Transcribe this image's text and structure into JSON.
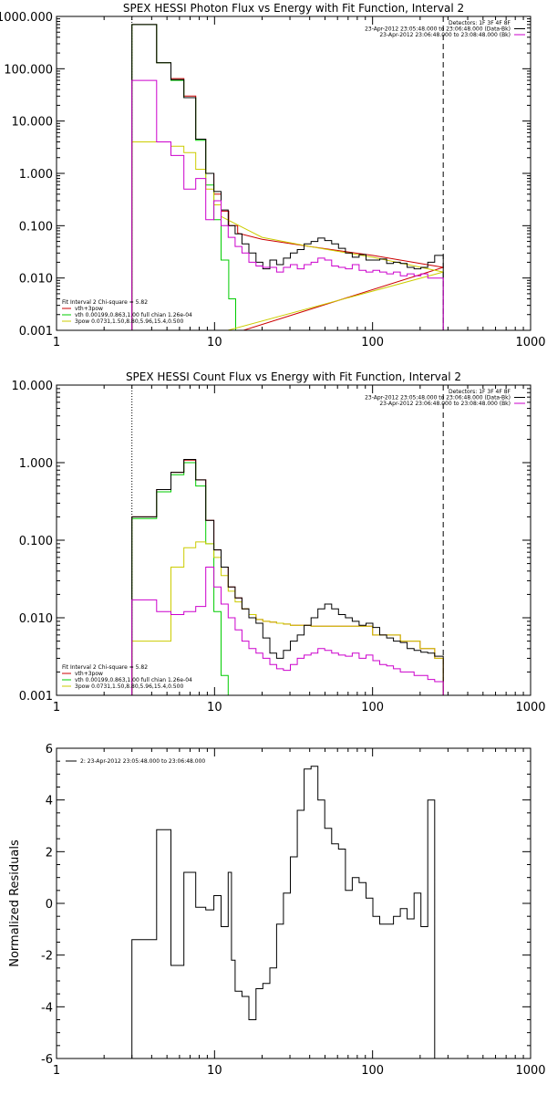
{
  "chart_data": [
    {
      "type": "line",
      "title": "SPEX HESSI Photon Flux vs Energy with Fit Function, Interval 2",
      "xscale": "log",
      "yscale": "log",
      "xlim": [
        1,
        1000
      ],
      "ylim": [
        0.001,
        1000
      ],
      "xticks": [
        {
          "value": 1,
          "label": "1"
        },
        {
          "value": 10,
          "label": "10"
        },
        {
          "value": 100,
          "label": "100"
        },
        {
          "value": 1000,
          "label": "1000"
        }
      ],
      "yticks": [
        {
          "value": 0.001,
          "label": "0.001"
        },
        {
          "value": 0.01,
          "label": "0.010"
        },
        {
          "value": 0.1,
          "label": "0.100"
        },
        {
          "value": 1,
          "label": "1.000"
        },
        {
          "value": 10,
          "label": "10.000"
        },
        {
          "value": 100,
          "label": "100.000"
        },
        {
          "value": 1000,
          "label": "1000.000"
        }
      ],
      "vlines": [
        {
          "x": 3,
          "style": "dotted",
          "color": "#000000"
        },
        {
          "x": 280,
          "style": "dashed",
          "color": "#000000"
        }
      ],
      "legend_top_right": [
        {
          "text": "Detectors: 1F 3F 4F 8F",
          "color": "#000000"
        },
        {
          "text": "23-Apr-2012 23:05:48.000 to 23:06:48.000 (Data-Bk)",
          "color": "#000000"
        },
        {
          "text": "23-Apr-2012 23:06:48.000 to 23:08:48.000 (Bk)",
          "color": "#cc00cc"
        }
      ],
      "legend_bottom_left": [
        {
          "text": "Fit Interval 2   Chi-square = 5.82",
          "color": "#000000"
        },
        {
          "text": "vth+3pow",
          "color": "#cc0000"
        },
        {
          "text": "vth 0.00199,0.863,1.00  full chian 1.26e-04",
          "color": "#00cc00"
        },
        {
          "text": "3pow 0.0731,1.50,8.80,5.96,15.4,0.500",
          "color": "#cccc00"
        }
      ],
      "series": [
        {
          "name": "vth+3pow",
          "color": "#cc0000",
          "step": true,
          "edges": [
            3,
            4.3,
            5.3,
            6.4,
            7.6,
            8.8,
            9.9,
            11,
            12.3,
            14
          ],
          "values": [
            700,
            130,
            65,
            30,
            4.5,
            1.0,
            0.4,
            0.19,
            0.1
          ],
          "line": {
            "x": [
              14,
              20,
              40,
              100,
              280
            ],
            "y": [
              0.072,
              0.055,
              0.04,
              0.027,
              0.016
            ]
          }
        },
        {
          "name": "vth",
          "color": "#00cc00",
          "step": true,
          "edges": [
            3,
            4.3,
            5.3,
            6.4,
            7.6,
            8.8,
            9.9,
            11,
            12.3,
            13.6,
            15
          ],
          "values": [
            700,
            130,
            60,
            28,
            4.3,
            0.6,
            0.13,
            0.022,
            0.004,
            0.001
          ]
        },
        {
          "name": "3pow",
          "color": "#cccc00",
          "step": true,
          "edges": [
            3,
            4.3,
            5.3,
            6.4,
            7.6,
            8.8,
            9.9,
            11
          ],
          "values": [
            4,
            4,
            3.3,
            2.5,
            1.2,
            0.5,
            0.25
          ],
          "line": {
            "x": [
              11,
              20,
              40,
              100,
              280
            ],
            "y": [
              0.15,
              0.06,
              0.04,
              0.025,
              0.013
            ]
          }
        },
        {
          "name": "Data-Bk",
          "color": "#000000",
          "step": true,
          "edges": [
            3,
            4.3,
            5.3,
            6.4,
            7.6,
            8.8,
            9.9,
            11,
            12.2,
            13.5,
            14.9,
            16.5,
            18.3,
            20.2,
            22.4,
            24.7,
            27.3,
            30.2,
            33.4,
            36.9,
            40.8,
            45.1,
            49.8,
            55.1,
            60.9,
            67.3,
            74.4,
            82.2,
            90.9,
            100.4,
            111,
            122.7,
            135.6,
            149.8,
            165.6,
            183,
            202.3,
            223.6,
            247.1,
            280
          ],
          "values": [
            700,
            130,
            62,
            28,
            4.5,
            1.0,
            0.45,
            0.2,
            0.1,
            0.07,
            0.045,
            0.03,
            0.02,
            0.015,
            0.022,
            0.018,
            0.024,
            0.03,
            0.035,
            0.045,
            0.05,
            0.058,
            0.052,
            0.045,
            0.037,
            0.03,
            0.025,
            0.028,
            0.022,
            0.022,
            0.023,
            0.019,
            0.02,
            0.019,
            0.016,
            0.015,
            0.016,
            0.02,
            0.027
          ]
        },
        {
          "name": "Bk",
          "color": "#cc00cc",
          "step": true,
          "edges": [
            3,
            4.3,
            5.3,
            6.4,
            7.6,
            8.8,
            9.9,
            11,
            12.2,
            13.5,
            14.9,
            16.5,
            18.3,
            20.2,
            22.4,
            24.7,
            27.3,
            30.2,
            33.4,
            36.9,
            40.8,
            45.1,
            49.8,
            55.1,
            60.9,
            67.3,
            74.4,
            82.2,
            90.9,
            100.4,
            111,
            122.7,
            135.6,
            149.8,
            165.6,
            183,
            202.3,
            223.6,
            247.1,
            280
          ],
          "values": [
            60,
            4,
            2.2,
            0.5,
            0.8,
            0.13,
            0.3,
            0.1,
            0.06,
            0.04,
            0.03,
            0.02,
            0.017,
            0.016,
            0.016,
            0.013,
            0.016,
            0.018,
            0.015,
            0.018,
            0.02,
            0.024,
            0.022,
            0.017,
            0.016,
            0.015,
            0.018,
            0.014,
            0.013,
            0.014,
            0.013,
            0.012,
            0.013,
            0.011,
            0.012,
            0.011,
            0.012,
            0.01,
            0.01
          ]
        }
      ]
    },
    {
      "type": "line",
      "title": "SPEX HESSI Count Flux vs Energy with Fit Function, Interval 2",
      "xscale": "log",
      "yscale": "log",
      "xlim": [
        1,
        1000
      ],
      "ylim": [
        0.001,
        10
      ],
      "xticks": [
        {
          "value": 1,
          "label": "1"
        },
        {
          "value": 10,
          "label": "10"
        },
        {
          "value": 100,
          "label": "100"
        },
        {
          "value": 1000,
          "label": "1000"
        }
      ],
      "yticks": [
        {
          "value": 0.001,
          "label": "0.001"
        },
        {
          "value": 0.01,
          "label": "0.010"
        },
        {
          "value": 0.1,
          "label": "0.100"
        },
        {
          "value": 1,
          "label": "1.000"
        },
        {
          "value": 10,
          "label": "10.000"
        }
      ],
      "vlines": [
        {
          "x": 3,
          "style": "dotted",
          "color": "#000000"
        },
        {
          "x": 280,
          "style": "dashed",
          "color": "#000000"
        }
      ],
      "legend_top_right": [
        {
          "text": "Detectors: 1F 3F 4F 8F",
          "color": "#000000"
        },
        {
          "text": "23-Apr-2012 23:05:48.000 to 23:06:48.000 (Data-Bk)",
          "color": "#000000"
        },
        {
          "text": "23-Apr-2012 23:06:48.000 to 23:08:48.000 (Bk)",
          "color": "#cc00cc"
        }
      ],
      "legend_bottom_left": [
        {
          "text": "Fit Interval 2   Chi-square = 5.82",
          "color": "#000000"
        },
        {
          "text": "vth+3pow",
          "color": "#cc0000"
        },
        {
          "text": "vth 0.00199,0.863,1.00  full chian 1.26e-04",
          "color": "#00cc00"
        },
        {
          "text": "3pow 0.0731,1.50,8.80,5.96,15.4,0.500",
          "color": "#cccc00"
        }
      ],
      "series": [
        {
          "name": "vth+3pow",
          "color": "#cc0000",
          "step": true,
          "edges": [
            3,
            4.3,
            5.3,
            6.4,
            7.6,
            8.8,
            9.9,
            11,
            12.2,
            13.5,
            14.9,
            16.5,
            18.3,
            20.2,
            22.4,
            24.7,
            27.3,
            30.2,
            40.8,
            100,
            150,
            200,
            247.1,
            280
          ],
          "values": [
            0.2,
            0.45,
            0.75,
            1.08,
            0.6,
            0.18,
            0.075,
            0.045,
            0.025,
            0.018,
            0.013,
            0.011,
            0.0095,
            0.009,
            0.0088,
            0.0085,
            0.0083,
            0.008,
            0.0078,
            0.006,
            0.005,
            0.004,
            0.003
          ]
        },
        {
          "name": "vth",
          "color": "#00cc00",
          "step": true,
          "edges": [
            3,
            4.3,
            5.3,
            6.4,
            7.6,
            8.8,
            9.9,
            11,
            12.2,
            13.5
          ],
          "values": [
            0.19,
            0.42,
            0.7,
            1.0,
            0.5,
            0.09,
            0.012,
            0.0018,
            0.0009
          ]
        },
        {
          "name": "3pow",
          "color": "#cccc00",
          "step": true,
          "edges": [
            3,
            4.3,
            5.3,
            6.4,
            7.6,
            8.8,
            9.9,
            11,
            12.2,
            13.5,
            14.9,
            16.5,
            18.3,
            20.2,
            22.4,
            24.7,
            27.3,
            30.2,
            40.8,
            100,
            150,
            200,
            247.1,
            280
          ],
          "values": [
            0.005,
            0.005,
            0.045,
            0.08,
            0.095,
            0.09,
            0.06,
            0.035,
            0.022,
            0.016,
            0.013,
            0.011,
            0.0095,
            0.009,
            0.0088,
            0.0085,
            0.0083,
            0.008,
            0.0078,
            0.006,
            0.005,
            0.004,
            0.003
          ]
        },
        {
          "name": "Data-Bk",
          "color": "#000000",
          "step": true,
          "edges": [
            3,
            4.3,
            5.3,
            6.4,
            7.6,
            8.8,
            9.9,
            11,
            12.2,
            13.5,
            14.9,
            16.5,
            18.3,
            20.2,
            22.4,
            24.7,
            27.3,
            30.2,
            33.4,
            36.9,
            40.8,
            45.1,
            49.8,
            55.1,
            60.9,
            67.3,
            74.4,
            82.2,
            90.9,
            100.4,
            111,
            122.7,
            135.6,
            149.8,
            165.6,
            183,
            202.3,
            223.6,
            247.1,
            280
          ],
          "values": [
            0.2,
            0.45,
            0.75,
            1.1,
            0.6,
            0.18,
            0.075,
            0.045,
            0.025,
            0.018,
            0.013,
            0.01,
            0.0085,
            0.0055,
            0.0035,
            0.003,
            0.0038,
            0.005,
            0.006,
            0.008,
            0.01,
            0.013,
            0.015,
            0.013,
            0.011,
            0.01,
            0.009,
            0.008,
            0.0085,
            0.0075,
            0.006,
            0.0055,
            0.005,
            0.0048,
            0.004,
            0.0038,
            0.0036,
            0.0035,
            0.0032
          ]
        },
        {
          "name": "Bk",
          "color": "#cc00cc",
          "step": true,
          "edges": [
            3,
            4.3,
            5.3,
            6.4,
            7.6,
            8.8,
            9.9,
            11,
            12.2,
            13.5,
            14.9,
            16.5,
            18.3,
            20.2,
            22.4,
            24.7,
            27.3,
            30.2,
            33.4,
            36.9,
            40.8,
            45.1,
            49.8,
            55.1,
            60.9,
            67.3,
            74.4,
            82.2,
            90.9,
            100.4,
            111,
            122.7,
            135.6,
            149.8,
            165.6,
            183,
            202.3,
            223.6,
            247.1,
            280
          ],
          "values": [
            0.017,
            0.012,
            0.011,
            0.012,
            0.014,
            0.045,
            0.025,
            0.015,
            0.01,
            0.007,
            0.005,
            0.004,
            0.0035,
            0.003,
            0.0025,
            0.0022,
            0.0021,
            0.0025,
            0.003,
            0.0033,
            0.0035,
            0.004,
            0.0038,
            0.0035,
            0.0033,
            0.0032,
            0.0035,
            0.003,
            0.0033,
            0.0028,
            0.0025,
            0.0024,
            0.0022,
            0.002,
            0.002,
            0.0018,
            0.0018,
            0.0016,
            0.0015
          ]
        }
      ]
    },
    {
      "type": "line",
      "title": "",
      "ylabel": "Normalized Residuals",
      "xscale": "log",
      "yscale": "linear",
      "xlim": [
        1,
        1000
      ],
      "ylim": [
        -6,
        6
      ],
      "xticks": [
        {
          "value": 1,
          "label": "1"
        },
        {
          "value": 10,
          "label": "10"
        },
        {
          "value": 100,
          "label": "100"
        },
        {
          "value": 1000,
          "label": "1000"
        }
      ],
      "yticks": [
        {
          "value": -6,
          "label": "-6"
        },
        {
          "value": -4,
          "label": "-4"
        },
        {
          "value": -2,
          "label": "-2"
        },
        {
          "value": 0,
          "label": "0"
        },
        {
          "value": 2,
          "label": "2"
        },
        {
          "value": 4,
          "label": "4"
        },
        {
          "value": 6,
          "label": "6"
        }
      ],
      "legend_top_left": [
        {
          "text": "2: 23-Apr-2012 23:05:48.000 to 23:06:48.000",
          "color": "#000000"
        }
      ],
      "series": [
        {
          "name": "2: 23-Apr-2012 23:05:48.000 to 23:06:48.000",
          "color": "#000000",
          "step": true,
          "edges": [
            3,
            3.7,
            4.3,
            4.7,
            5.3,
            5.8,
            6.4,
            7,
            7.6,
            8.2,
            8.8,
            9.4,
            9.9,
            10.5,
            11,
            11.6,
            12.2,
            12.8,
            13.5,
            14.9,
            16.5,
            18.3,
            20.2,
            22.4,
            24.7,
            27.3,
            30.2,
            33.4,
            36.9,
            40.8,
            45.1,
            49.8,
            55.1,
            60.9,
            67.3,
            74.4,
            82.2,
            90.9,
            100.4,
            111,
            122.7,
            135.6,
            149.8,
            165.6,
            183,
            202.3,
            223.6,
            247.1,
            280
          ],
          "values": [
            -1.4,
            -1.4,
            2.85,
            2.85,
            -2.4,
            -2.4,
            1.2,
            1.2,
            -0.15,
            -0.15,
            -0.25,
            -0.25,
            0.3,
            0.3,
            -0.9,
            -0.9,
            1.2,
            -2.2,
            -3.4,
            -3.6,
            -4.5,
            -3.3,
            -3.1,
            -2.5,
            -0.8,
            0.4,
            1.8,
            3.6,
            5.2,
            5.3,
            4.0,
            2.9,
            2.3,
            2.1,
            0.5,
            1.0,
            0.8,
            0.2,
            -0.5,
            -0.8,
            -0.8,
            -0.5,
            -0.2,
            -0.6,
            0.4,
            -0.9,
            4.0,
            -6.0
          ],
          "start": -6.0
        }
      ]
    }
  ]
}
